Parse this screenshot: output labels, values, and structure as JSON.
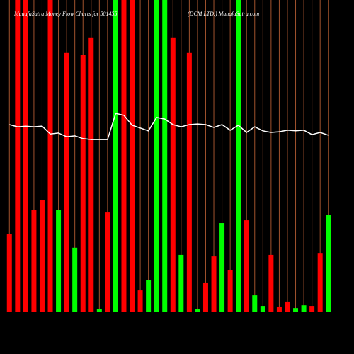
{
  "chart_data": {
    "type": "bar",
    "title": "MunafaSutra Money Flow Charts for 501455",
    "subtitle": "(DCM LTD.) MunafaSutra.com",
    "categories": [
      null,
      null,
      null,
      null,
      null,
      null,
      null,
      null,
      null,
      null,
      null,
      null,
      null,
      null,
      null,
      null,
      null,
      null,
      null,
      null,
      null,
      null,
      null,
      null,
      null,
      null,
      null,
      null,
      null,
      null,
      null,
      null,
      null,
      null,
      null,
      null,
      null,
      null,
      null,
      null
    ],
    "values": [
      25,
      100,
      100,
      32.5,
      35.9,
      100,
      32.5,
      83,
      20.5,
      82.3,
      88,
      0.7,
      31.8,
      100,
      100,
      100,
      6.8,
      10,
      100,
      100,
      88,
      18.2,
      83,
      0.9,
      9.1,
      17.7,
      28.4,
      13.2,
      100,
      29.3,
      5.2,
      1.8,
      18.2,
      1.6,
      3.2,
      1.1,
      2,
      1.8,
      18.6,
      31.1
    ],
    "colors": [
      "#ff0000",
      "#ff0000",
      "#ff0000",
      "#ff0000",
      "#ff0000",
      "#ff0000",
      "#00ff00",
      "#ff0000",
      "#00ff00",
      "#ff0000",
      "#ff0000",
      "#00ff00",
      "#ff0000",
      "#00ff00",
      "#ff0000",
      "#ff0000",
      "#ff0000",
      "#00ff00",
      "#00ff00",
      "#00ff00",
      "#ff0000",
      "#00ff00",
      "#ff0000",
      "#00ff00",
      "#ff0000",
      "#ff0000",
      "#00ff00",
      "#ff0000",
      "#00ff00",
      "#ff0000",
      "#00ff00",
      "#00ff00",
      "#ff0000",
      "#ff0000",
      "#ff0000",
      "#00ff00",
      "#00ff00",
      "#ff0000",
      "#ff0000",
      "#00ff00"
    ],
    "line": {
      "color": "#ffffff",
      "values": [
        60,
        59.3,
        59.5,
        59.3,
        59.5,
        57,
        57.3,
        56.1,
        56.4,
        55.5,
        55.2,
        55.2,
        55.2,
        63.6,
        63,
        59.8,
        58.9,
        58,
        62.3,
        61.8,
        60,
        59.3,
        60,
        60.2,
        60,
        59.1,
        60,
        58.2,
        59.8,
        57.5,
        59.3,
        58,
        57.5,
        57.7,
        58.2,
        58,
        58.2,
        56.8,
        57.5,
        56.6
      ]
    },
    "gridline_color": "#a0522d"
  }
}
